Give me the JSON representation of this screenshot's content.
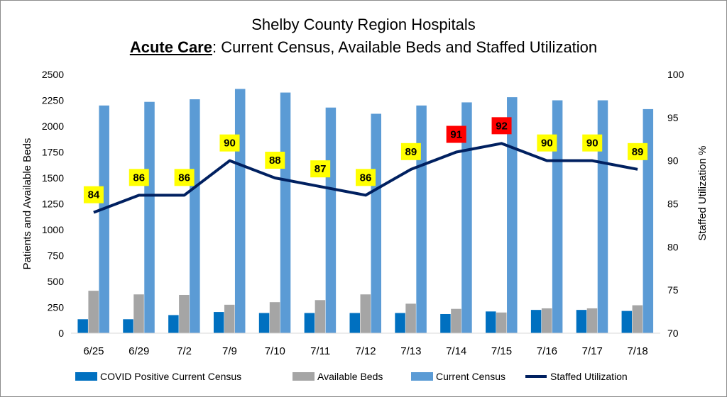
{
  "chart_data": {
    "type": "bar",
    "title": "Shelby County Region Hospitals",
    "subtitle_bold": "Acute Care",
    "subtitle_rest": ": Current Census, Available Beds and Staffed Utilization",
    "ylabel": "Patients and Available Beds",
    "y2label": "Staffed Utilization %",
    "ylim": [
      0,
      2500
    ],
    "y2lim": [
      70,
      100
    ],
    "yticks": [
      "0",
      "250",
      "500",
      "750",
      "1000",
      "1250",
      "1500",
      "1750",
      "2000",
      "2250",
      "2500"
    ],
    "y2ticks": [
      "70",
      "75",
      "80",
      "85",
      "90",
      "95",
      "100"
    ],
    "categories": [
      "6/25",
      "6/29",
      "7/2",
      "7/9",
      "7/10",
      "7/11",
      "7/12",
      "7/13",
      "7/14",
      "7/15",
      "7/16",
      "7/17",
      "7/18"
    ],
    "series": [
      {
        "name": "COVID Positive Current Census",
        "type": "bar",
        "color": "#0070c0",
        "values": [
          135,
          135,
          175,
          205,
          195,
          195,
          195,
          195,
          185,
          210,
          225,
          225,
          215
        ]
      },
      {
        "name": "Available Beds",
        "type": "bar",
        "color": "#a5a5a5",
        "values": [
          410,
          375,
          370,
          275,
          300,
          320,
          375,
          285,
          235,
          200,
          240,
          240,
          270
        ]
      },
      {
        "name": "Current Census",
        "type": "bar",
        "color": "#5b9bd5",
        "values": [
          2200,
          2235,
          2260,
          2360,
          2325,
          2180,
          2120,
          2200,
          2230,
          2280,
          2250,
          2250,
          2165
        ]
      },
      {
        "name": "Staffed Utilization",
        "type": "line",
        "axis": "secondary",
        "color": "#002060",
        "values": [
          84,
          86,
          86,
          90,
          88,
          87,
          86,
          89,
          91,
          92,
          90,
          90,
          89
        ],
        "labels": [
          "84",
          "86",
          "86",
          "90",
          "88",
          "87",
          "86",
          "89",
          "91",
          "92",
          "90",
          "90",
          "89"
        ],
        "label_colors": [
          "#ffff00",
          "#ffff00",
          "#ffff00",
          "#ffff00",
          "#ffff00",
          "#ffff00",
          "#ffff00",
          "#ffff00",
          "#ff0000",
          "#ff0000",
          "#ffff00",
          "#ffff00",
          "#ffff00"
        ]
      }
    ],
    "grid": false,
    "legend_position": "bottom"
  }
}
